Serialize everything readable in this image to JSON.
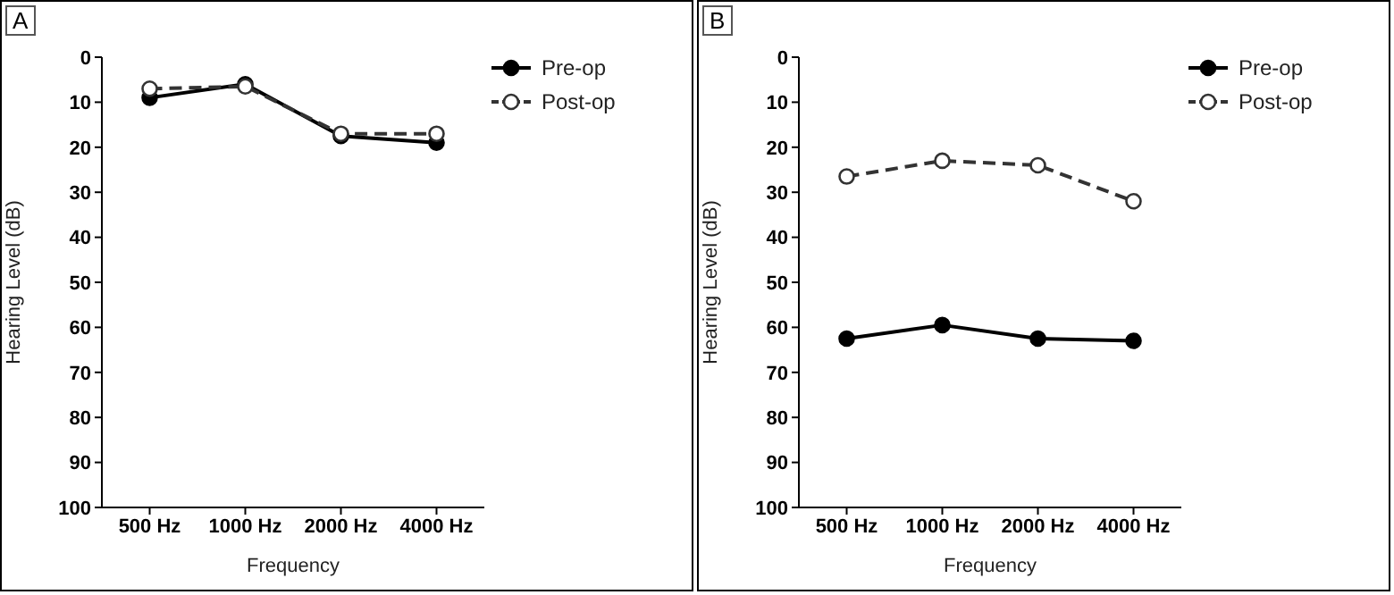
{
  "chart_data": [
    {
      "type": "line",
      "title": "A",
      "xlabel": "Frequency",
      "ylabel": "Hearing Level (dB)",
      "categories": [
        "500 Hz",
        "1000 Hz",
        "2000 Hz",
        "4000 Hz"
      ],
      "series": [
        {
          "name": "Pre-op",
          "color": "#000000",
          "values": [
            9,
            6,
            17.5,
            19
          ],
          "line_style": "solid"
        },
        {
          "name": "Post-op",
          "color": "#333333",
          "values": [
            7,
            6.5,
            17,
            17
          ],
          "line_style": "dashed"
        }
      ],
      "ylim": [
        100,
        0
      ],
      "yticks": [
        0,
        10,
        20,
        30,
        40,
        50,
        60,
        70,
        80,
        90,
        100
      ],
      "grid": false,
      "legend": "top right",
      "marker": "circle"
    },
    {
      "type": "line",
      "title": "B",
      "xlabel": "Frequency",
      "ylabel": "Hearing Level (dB)",
      "categories": [
        "500 Hz",
        "1000 Hz",
        "2000 Hz",
        "4000 Hz"
      ],
      "series": [
        {
          "name": "Pre-op",
          "color": "#000000",
          "values": [
            62.5,
            59.5,
            62.5,
            63
          ],
          "line_style": "solid"
        },
        {
          "name": "Post-op",
          "color": "#333333",
          "values": [
            26.5,
            23,
            24,
            32
          ],
          "line_style": "dashed"
        }
      ],
      "ylim": [
        100,
        0
      ],
      "yticks": [
        0,
        10,
        20,
        30,
        40,
        50,
        60,
        70,
        80,
        90,
        100
      ],
      "grid": false,
      "legend": "top right",
      "marker": "circle"
    }
  ]
}
